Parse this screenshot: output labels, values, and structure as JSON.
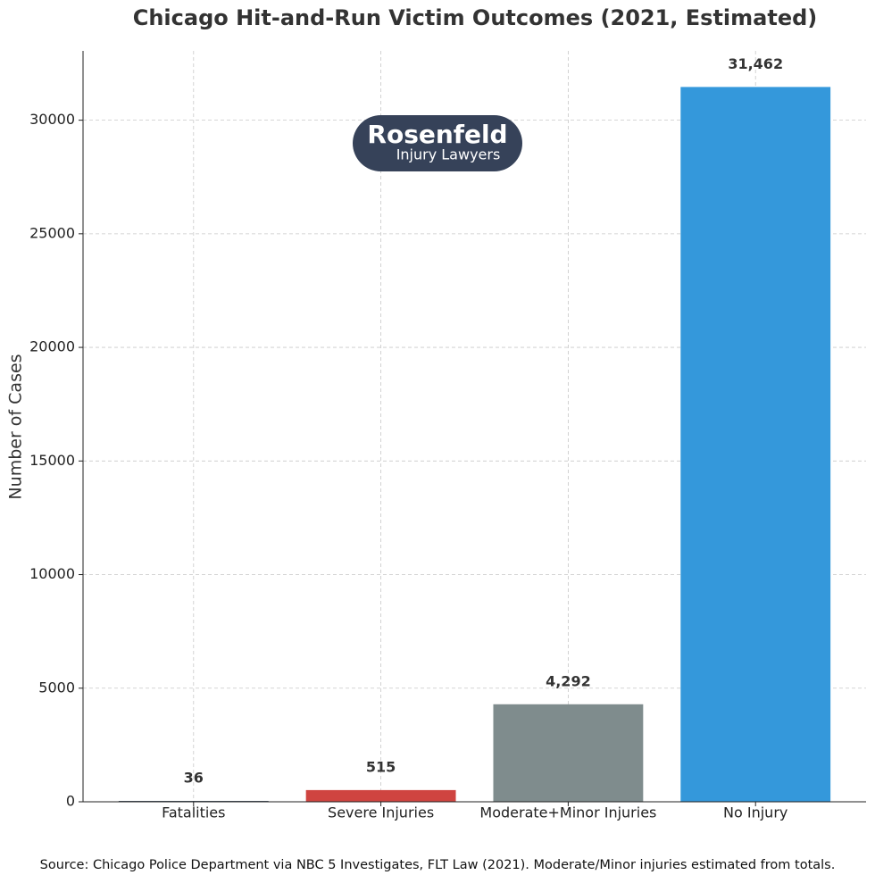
{
  "chart_data": {
    "type": "bar",
    "title": "Chicago Hit-and-Run Victim Outcomes (2021, Estimated)",
    "y_label": "Number of Cases",
    "categories": [
      "Fatalities",
      "Severe Injuries",
      "Moderate+Minor Injuries",
      "No Injury"
    ],
    "values": [
      36,
      515,
      4292,
      31462
    ],
    "value_labels": [
      "36",
      "515",
      "4,292",
      "31,462"
    ],
    "colors": [
      "#2c3e50",
      "#cf4440",
      "#7f8c8d",
      "#3498db"
    ],
    "ylim": [
      0,
      33050
    ],
    "yticks": [
      0,
      5000,
      10000,
      15000,
      20000,
      25000,
      30000
    ],
    "grid": true,
    "logo": {
      "name": "Rosenfeld",
      "subtitle": "Injury Lawyers"
    },
    "source": "Source: Chicago Police Department via NBC 5 Investigates, FLT Law (2021). Moderate/Minor injuries estimated from totals."
  }
}
